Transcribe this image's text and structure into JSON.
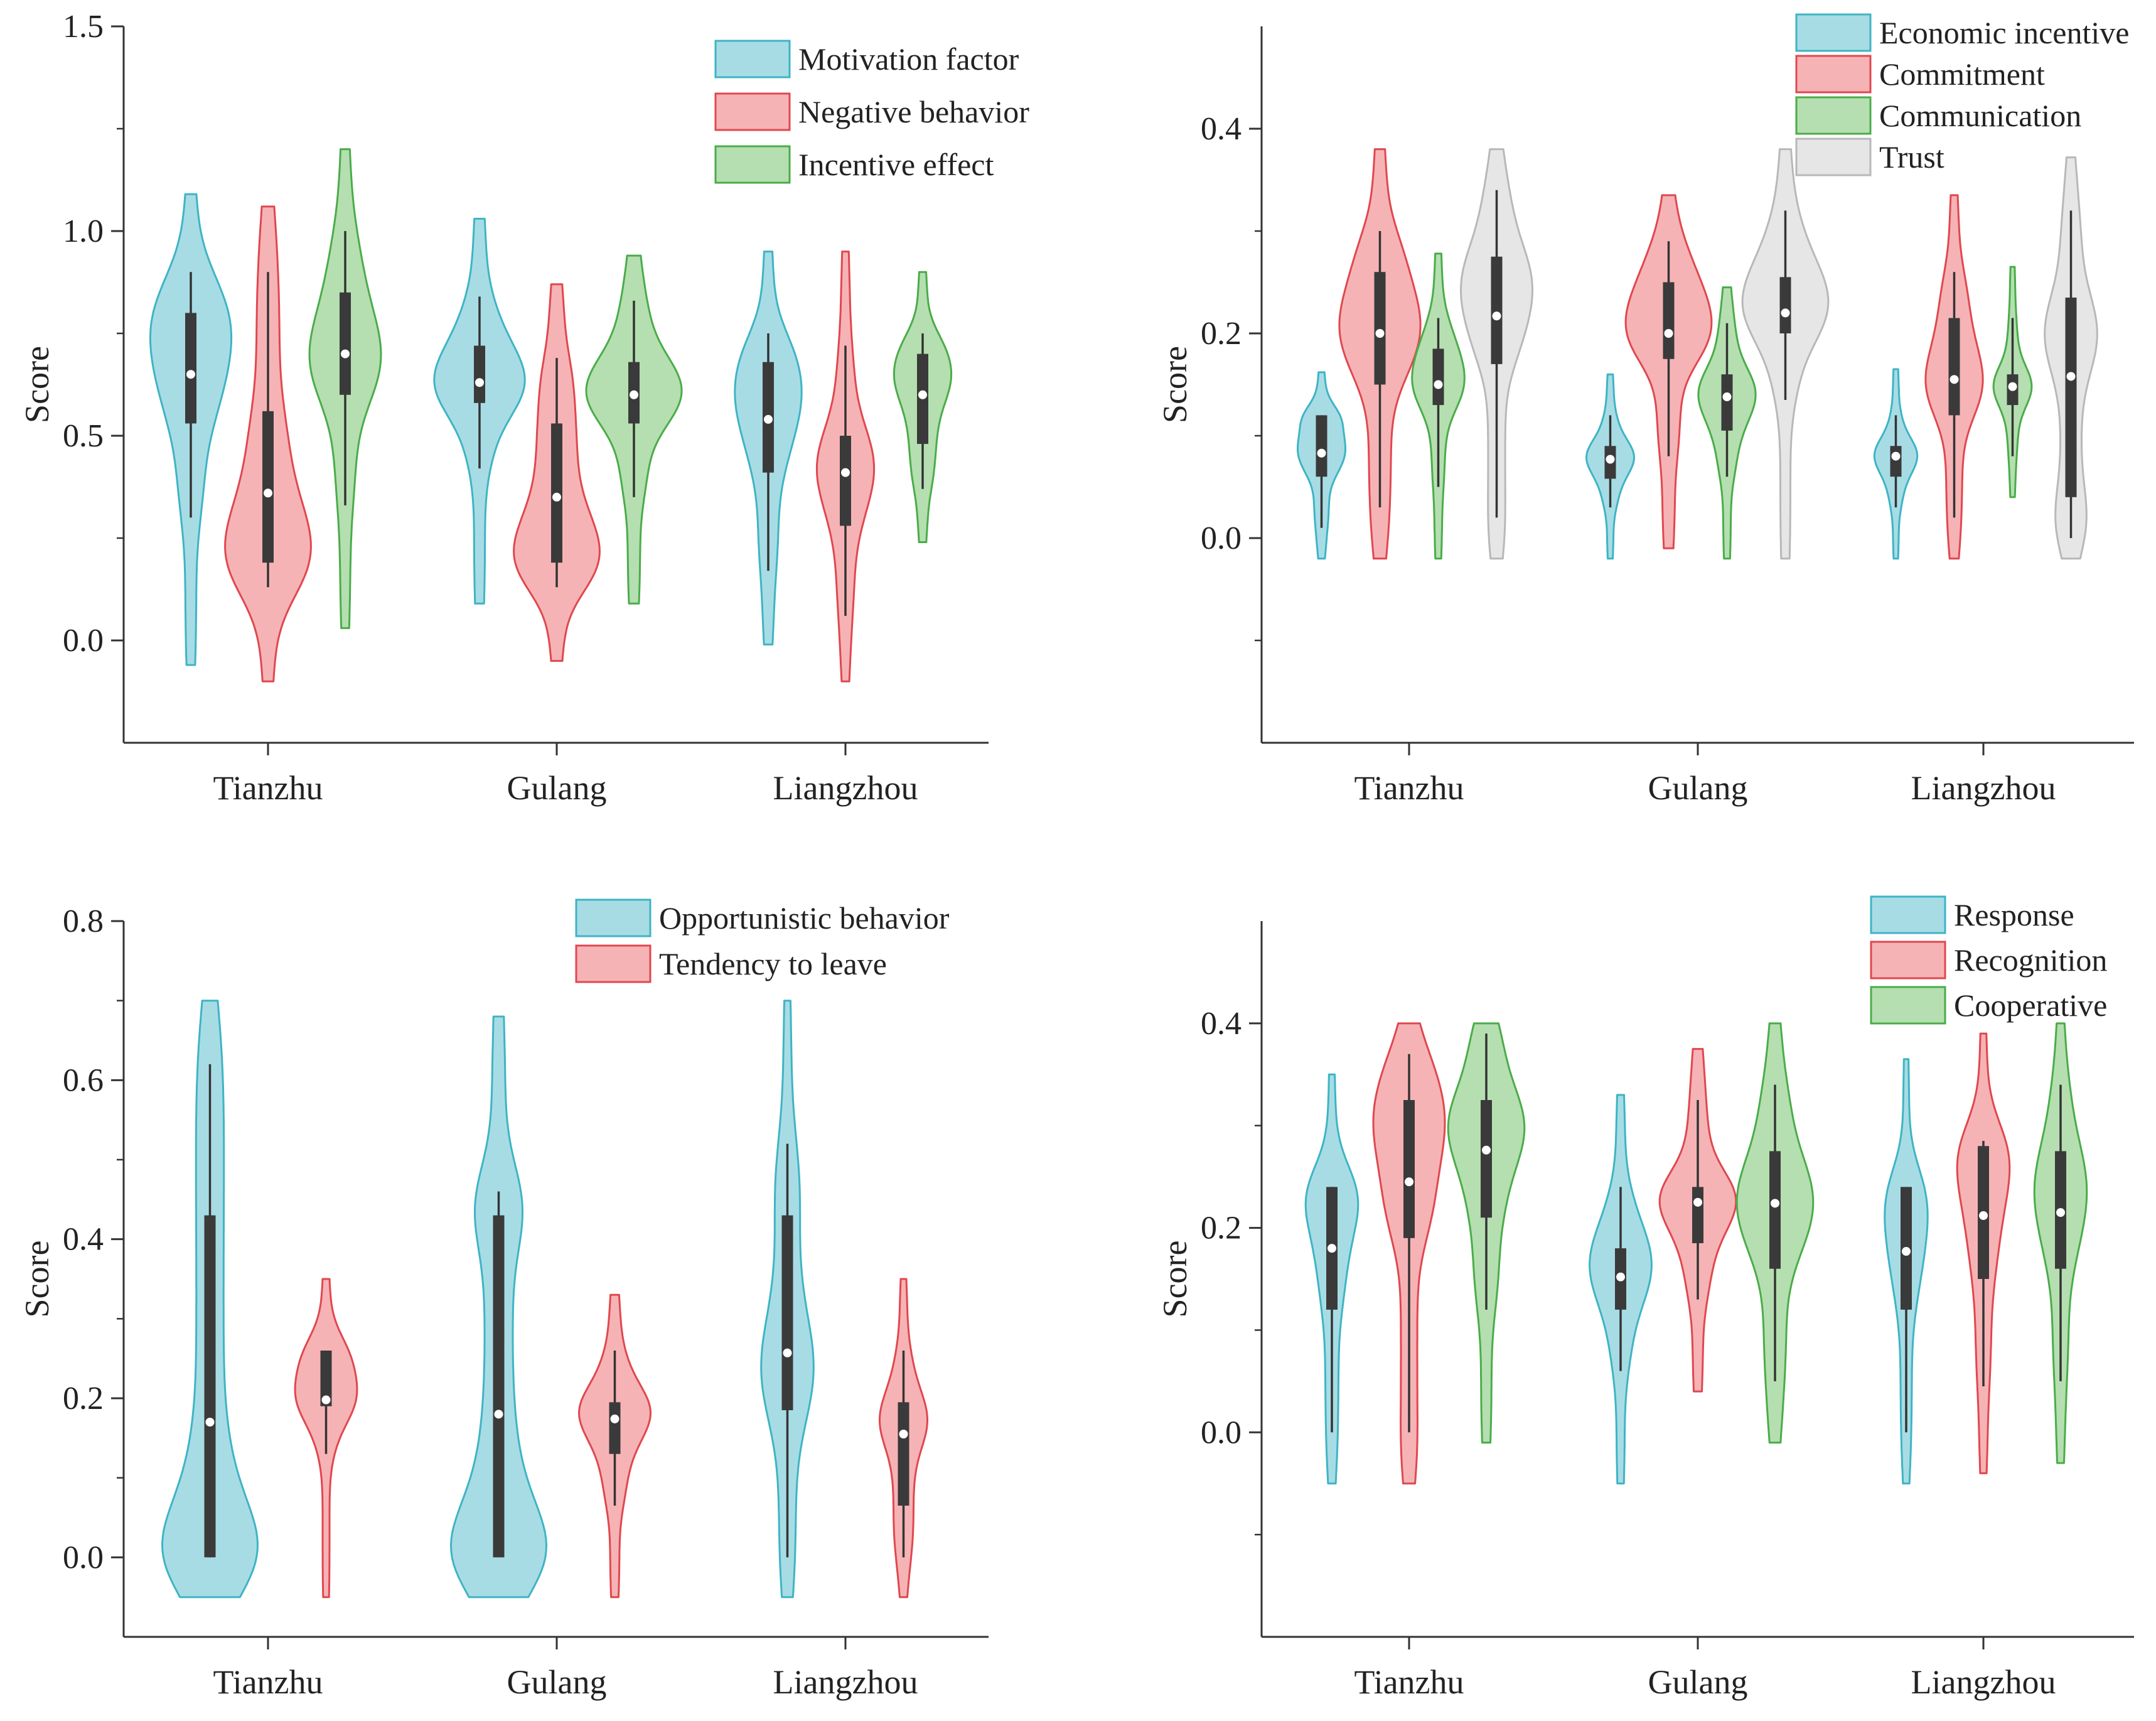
{
  "chart_data": [
    {
      "type": "violin",
      "ylabel": "Score",
      "ylabel_visible": true,
      "ylim": [
        -0.25,
        1.5
      ],
      "yticks": [
        0.0,
        0.5,
        1.0,
        1.5
      ],
      "ytick_labels": [
        "0.0",
        "0.5",
        "1.0",
        "1.5"
      ],
      "categories": [
        "Tianzhu",
        "Gulang",
        "Liangzhou"
      ],
      "series": [
        {
          "name": "Motivation factor",
          "color": "#3eb4c4",
          "fill": "#a8dce5",
          "stats": [
            {
              "min": -0.06,
              "max": 1.09,
              "whisker_low": 0.3,
              "whisker_high": 0.9,
              "q1": 0.53,
              "q3": 0.8,
              "median": 0.65,
              "mode": 0.75,
              "width": 0.85
            },
            {
              "min": 0.09,
              "max": 1.03,
              "whisker_low": 0.42,
              "whisker_high": 0.84,
              "q1": 0.58,
              "q3": 0.72,
              "median": 0.63,
              "mode": 0.64,
              "width": 0.95
            },
            {
              "min": -0.01,
              "max": 0.95,
              "whisker_low": 0.17,
              "whisker_high": 0.75,
              "q1": 0.41,
              "q3": 0.68,
              "median": 0.54,
              "mode": 0.6,
              "width": 0.7
            }
          ]
        },
        {
          "name": "Negative behavior",
          "color": "#e0474f",
          "fill": "#f6b3b5",
          "stats": [
            {
              "min": -0.1,
              "max": 1.06,
              "whisker_low": 0.13,
              "whisker_high": 0.9,
              "q1": 0.19,
              "q3": 0.56,
              "median": 0.36,
              "mode": 0.24,
              "width": 0.9
            },
            {
              "min": -0.05,
              "max": 0.87,
              "whisker_low": 0.13,
              "whisker_high": 0.69,
              "q1": 0.19,
              "q3": 0.53,
              "median": 0.35,
              "mode": 0.23,
              "width": 0.9
            },
            {
              "min": -0.1,
              "max": 0.95,
              "whisker_low": 0.06,
              "whisker_high": 0.72,
              "q1": 0.28,
              "q3": 0.5,
              "median": 0.41,
              "mode": 0.42,
              "width": 0.6
            }
          ]
        },
        {
          "name": "Incentive effect",
          "color": "#4aac4a",
          "fill": "#b5dfb0",
          "stats": [
            {
              "min": 0.03,
              "max": 1.2,
              "whisker_low": 0.33,
              "whisker_high": 1.0,
              "q1": 0.6,
              "q3": 0.85,
              "median": 0.7,
              "mode": 0.7,
              "width": 0.75
            },
            {
              "min": 0.09,
              "max": 0.94,
              "whisker_low": 0.35,
              "whisker_high": 0.83,
              "q1": 0.53,
              "q3": 0.68,
              "median": 0.6,
              "mode": 0.62,
              "width": 1.0
            },
            {
              "min": 0.24,
              "max": 0.9,
              "whisker_low": 0.37,
              "whisker_high": 0.75,
              "q1": 0.48,
              "q3": 0.7,
              "median": 0.6,
              "mode": 0.64,
              "width": 0.6
            }
          ]
        }
      ]
    },
    {
      "type": "violin",
      "ylabel": "Score",
      "ylabel_visible": true,
      "ylim": [
        -0.2,
        0.5
      ],
      "yticks": [
        0.0,
        0.2,
        0.4
      ],
      "ytick_labels": [
        "0.0",
        "0.2",
        "0.4"
      ],
      "categories": [
        "Tianzhu",
        "Gulang",
        "Liangzhou"
      ],
      "series": [
        {
          "name": "Economic incentive",
          "color": "#3eb4c4",
          "fill": "#a8dce5",
          "stats": [
            {
              "min": -0.02,
              "max": 0.162,
              "whisker_low": 0.01,
              "whisker_high": 0.12,
              "q1": 0.06,
              "q3": 0.12,
              "median": 0.083,
              "mode": 0.09,
              "width": 0.5
            },
            {
              "min": -0.02,
              "max": 0.16,
              "whisker_low": 0.03,
              "whisker_high": 0.12,
              "q1": 0.058,
              "q3": 0.09,
              "median": 0.077,
              "mode": 0.08,
              "width": 0.5
            },
            {
              "min": -0.02,
              "max": 0.165,
              "whisker_low": 0.03,
              "whisker_high": 0.12,
              "q1": 0.06,
              "q3": 0.09,
              "median": 0.08,
              "mode": 0.08,
              "width": 0.45
            }
          ]
        },
        {
          "name": "Commitment",
          "color": "#e0474f",
          "fill": "#f6b3b5",
          "stats": [
            {
              "min": -0.02,
              "max": 0.38,
              "whisker_low": 0.03,
              "whisker_high": 0.3,
              "q1": 0.15,
              "q3": 0.26,
              "median": 0.2,
              "mode": 0.21,
              "width": 0.85
            },
            {
              "min": -0.01,
              "max": 0.335,
              "whisker_low": 0.08,
              "whisker_high": 0.29,
              "q1": 0.175,
              "q3": 0.25,
              "median": 0.2,
              "mode": 0.22,
              "width": 0.9
            },
            {
              "min": -0.02,
              "max": 0.335,
              "whisker_low": 0.02,
              "whisker_high": 0.26,
              "q1": 0.12,
              "q3": 0.215,
              "median": 0.155,
              "mode": 0.16,
              "width": 0.6
            }
          ]
        },
        {
          "name": "Communication",
          "color": "#4aac4a",
          "fill": "#b5dfb0",
          "stats": [
            {
              "min": -0.02,
              "max": 0.278,
              "whisker_low": 0.05,
              "whisker_high": 0.215,
              "q1": 0.13,
              "q3": 0.185,
              "median": 0.15,
              "mode": 0.16,
              "width": 0.55
            },
            {
              "min": -0.02,
              "max": 0.245,
              "whisker_low": 0.06,
              "whisker_high": 0.21,
              "q1": 0.105,
              "q3": 0.16,
              "median": 0.138,
              "mode": 0.14,
              "width": 0.6
            },
            {
              "min": 0.04,
              "max": 0.265,
              "whisker_low": 0.08,
              "whisker_high": 0.215,
              "q1": 0.13,
              "q3": 0.16,
              "median": 0.148,
              "mode": 0.15,
              "width": 0.4
            }
          ]
        },
        {
          "name": "Trust",
          "color": "#b8b8b8",
          "fill": "#e6e6e6",
          "stats": [
            {
              "min": -0.02,
              "max": 0.38,
              "whisker_low": 0.02,
              "whisker_high": 0.34,
              "q1": 0.17,
              "q3": 0.275,
              "median": 0.217,
              "mode": 0.25,
              "width": 0.75
            },
            {
              "min": -0.02,
              "max": 0.38,
              "whisker_low": 0.135,
              "whisker_high": 0.32,
              "q1": 0.2,
              "q3": 0.255,
              "median": 0.22,
              "mode": 0.25,
              "width": 0.9
            },
            {
              "min": -0.02,
              "max": 0.372,
              "whisker_low": 0.0,
              "whisker_high": 0.32,
              "q1": 0.04,
              "q3": 0.235,
              "median": 0.158,
              "mode": 0.2,
              "width": 0.55
            }
          ]
        }
      ]
    },
    {
      "type": "violin",
      "ylabel": "Score",
      "ylabel_visible": true,
      "ylim": [
        -0.1,
        0.8
      ],
      "yticks": [
        0.0,
        0.2,
        0.4,
        0.6,
        0.8
      ],
      "ytick_labels": [
        "0.0",
        "0.2",
        "0.4",
        "0.6",
        "0.8"
      ],
      "categories": [
        "Tianzhu",
        "Gulang",
        "Liangzhou"
      ],
      "series": [
        {
          "name": "Opportunistic behavior",
          "color": "#3eb4c4",
          "fill": "#a8dce5",
          "stats": [
            {
              "min": -0.05,
              "max": 0.7,
              "whisker_low": 0.0,
              "whisker_high": 0.62,
              "q1": 0.0,
              "q3": 0.43,
              "median": 0.17,
              "mode": 0.02,
              "width": 1.0,
              "trunc_low": true
            },
            {
              "min": -0.05,
              "max": 0.68,
              "whisker_low": 0.0,
              "whisker_high": 0.46,
              "q1": 0.0,
              "q3": 0.43,
              "median": 0.18,
              "mode": 0.02,
              "width": 1.0,
              "trunc_low": true
            },
            {
              "min": -0.05,
              "max": 0.7,
              "whisker_low": 0.0,
              "whisker_high": 0.52,
              "q1": 0.185,
              "q3": 0.43,
              "median": 0.257,
              "mode": 0.25,
              "width": 0.55
            }
          ]
        },
        {
          "name": "Tendency to leave",
          "color": "#e0474f",
          "fill": "#f6b3b5",
          "stats": [
            {
              "min": -0.05,
              "max": 0.35,
              "whisker_low": 0.13,
              "whisker_high": 0.26,
              "q1": 0.19,
              "q3": 0.26,
              "median": 0.198,
              "mode": 0.22,
              "width": 0.65
            },
            {
              "min": -0.05,
              "max": 0.33,
              "whisker_low": 0.065,
              "whisker_high": 0.26,
              "q1": 0.13,
              "q3": 0.195,
              "median": 0.174,
              "mode": 0.19,
              "width": 0.75
            },
            {
              "min": -0.05,
              "max": 0.35,
              "whisker_low": 0.0,
              "whisker_high": 0.26,
              "q1": 0.065,
              "q3": 0.195,
              "median": 0.155,
              "mode": 0.17,
              "width": 0.5
            }
          ]
        }
      ]
    },
    {
      "type": "violin",
      "ylabel": "Score",
      "ylabel_visible": true,
      "ylim": [
        -0.2,
        0.5
      ],
      "yticks": [
        0.0,
        0.2,
        0.4
      ],
      "ytick_labels": [
        "0.0",
        "0.2",
        "0.4"
      ],
      "categories": [
        "Tianzhu",
        "Gulang",
        "Liangzhou"
      ],
      "series": [
        {
          "name": "Response",
          "color": "#3eb4c4",
          "fill": "#a8dce5",
          "stats": [
            {
              "min": -0.05,
              "max": 0.35,
              "whisker_low": 0.0,
              "whisker_high": 0.24,
              "q1": 0.12,
              "q3": 0.24,
              "median": 0.18,
              "mode": 0.22,
              "width": 0.55
            },
            {
              "min": -0.05,
              "max": 0.33,
              "whisker_low": 0.06,
              "whisker_high": 0.24,
              "q1": 0.12,
              "q3": 0.18,
              "median": 0.152,
              "mode": 0.18,
              "width": 0.65
            },
            {
              "min": -0.05,
              "max": 0.365,
              "whisker_low": 0.0,
              "whisker_high": 0.24,
              "q1": 0.12,
              "q3": 0.24,
              "median": 0.177,
              "mode": 0.2,
              "width": 0.45
            }
          ]
        },
        {
          "name": "Recognition",
          "color": "#e0474f",
          "fill": "#f6b3b5",
          "stats": [
            {
              "min": -0.05,
              "max": 0.4,
              "whisker_low": 0.0,
              "whisker_high": 0.37,
              "q1": 0.19,
              "q3": 0.325,
              "median": 0.245,
              "mode": 0.3,
              "width": 0.75,
              "trunc_high": true
            },
            {
              "min": 0.04,
              "max": 0.375,
              "whisker_low": 0.13,
              "whisker_high": 0.325,
              "q1": 0.185,
              "q3": 0.24,
              "median": 0.225,
              "mode": 0.23,
              "width": 0.8
            },
            {
              "min": -0.04,
              "max": 0.39,
              "whisker_low": 0.045,
              "whisker_high": 0.285,
              "q1": 0.15,
              "q3": 0.28,
              "median": 0.212,
              "mode": 0.25,
              "width": 0.55
            }
          ]
        },
        {
          "name": "Cooperative",
          "color": "#4aac4a",
          "fill": "#b5dfb0",
          "stats": [
            {
              "min": -0.01,
              "max": 0.4,
              "whisker_low": 0.12,
              "whisker_high": 0.39,
              "q1": 0.21,
              "q3": 0.325,
              "median": 0.276,
              "mode": 0.3,
              "width": 0.8,
              "trunc_high": true
            },
            {
              "min": -0.01,
              "max": 0.4,
              "whisker_low": 0.05,
              "whisker_high": 0.34,
              "q1": 0.16,
              "q3": 0.275,
              "median": 0.224,
              "mode": 0.22,
              "width": 0.8
            },
            {
              "min": -0.03,
              "max": 0.4,
              "whisker_low": 0.05,
              "whisker_high": 0.34,
              "q1": 0.16,
              "q3": 0.275,
              "median": 0.215,
              "mode": 0.24,
              "width": 0.55
            }
          ]
        }
      ]
    }
  ]
}
